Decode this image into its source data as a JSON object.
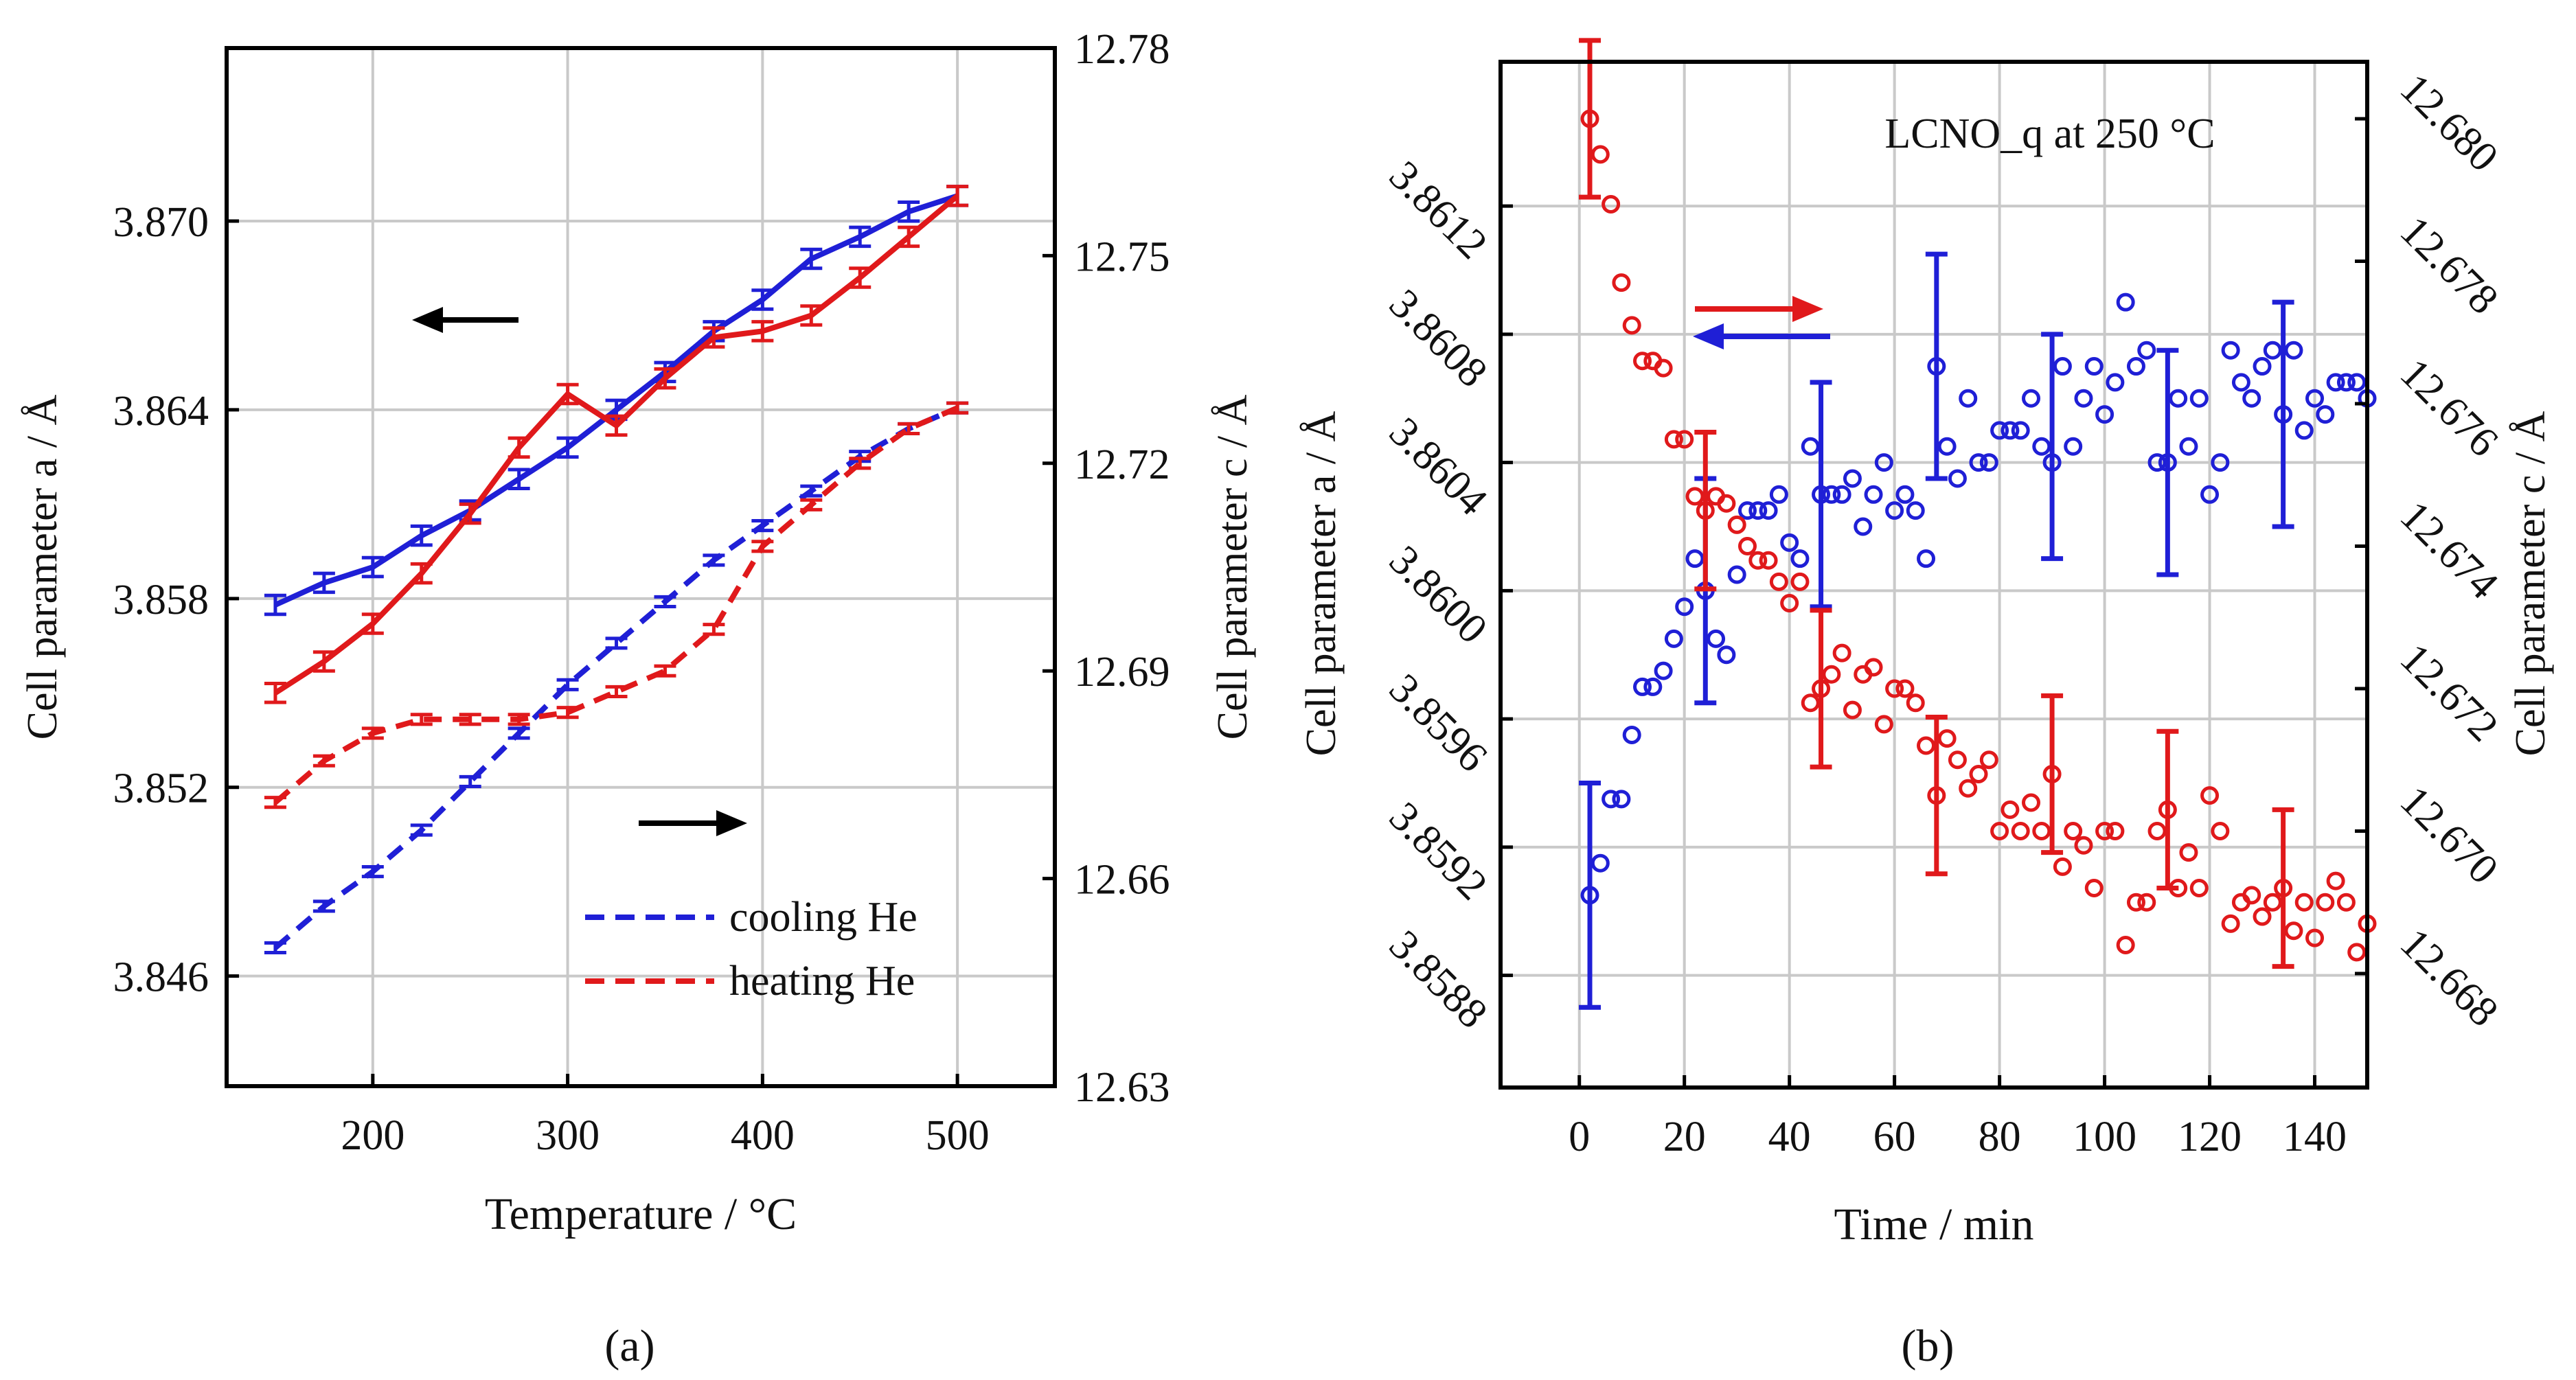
{
  "colors": {
    "cooling": "#1f1fd6",
    "heating": "#e0191b",
    "grid": "#c9c9c9"
  },
  "panel_labels": [
    "(a)",
    "(b)"
  ],
  "chart_data": [
    {
      "id": "a",
      "type": "line",
      "xlabel": "Temperature / °C",
      "ylabel_left": "Cell parameter a / Å",
      "ylabel_right": "Cell parameter c / Å",
      "xlim": [
        125,
        550
      ],
      "ylim_left": [
        3.8425,
        3.8755
      ],
      "ylim_right": [
        12.63,
        12.78
      ],
      "xticks": [
        200,
        300,
        400,
        500
      ],
      "yticks_left": [
        3.846,
        3.852,
        3.858,
        3.864,
        3.87
      ],
      "ytick_labels_left": [
        "3.846",
        "3.852",
        "3.858",
        "3.864",
        "3.870"
      ],
      "yticks_right": [
        12.63,
        12.66,
        12.69,
        12.72,
        12.75,
        12.78
      ],
      "ytick_labels_right": [
        "12.63",
        "12.66",
        "12.69",
        "12.72",
        "12.75",
        "12.78"
      ],
      "x": [
        150,
        175,
        200,
        225,
        250,
        275,
        300,
        325,
        350,
        375,
        400,
        425,
        450,
        475,
        500
      ],
      "series": [
        {
          "name": "cooling He",
          "param": "a",
          "axis": "left",
          "style": "solid",
          "color_key": "cooling",
          "values": [
            3.8578,
            3.8585,
            3.859,
            3.86,
            3.8608,
            3.8618,
            3.8628,
            3.864,
            3.8652,
            3.8665,
            3.8675,
            3.8688,
            3.8695,
            3.8703,
            3.8708
          ],
          "error": 0.0003
        },
        {
          "name": "heating He",
          "param": "a",
          "axis": "left",
          "style": "solid",
          "color_key": "heating",
          "values": [
            3.855,
            3.856,
            3.8572,
            3.8588,
            3.8607,
            3.8628,
            3.8645,
            3.8635,
            3.865,
            3.8663,
            3.8665,
            3.867,
            3.8682,
            3.8695,
            3.8708
          ],
          "error": 0.0003
        },
        {
          "name": "cooling He",
          "param": "c",
          "axis": "right",
          "style": "dashed",
          "color_key": "cooling",
          "values": [
            12.65,
            12.656,
            12.661,
            12.667,
            12.674,
            12.681,
            12.688,
            12.694,
            12.7,
            12.706,
            12.711,
            12.716,
            12.721,
            12.725,
            12.728
          ],
          "error": 0.0007
        },
        {
          "name": "heating He",
          "param": "c",
          "axis": "right",
          "style": "dashed",
          "color_key": "heating",
          "values": [
            12.671,
            12.677,
            12.681,
            12.683,
            12.683,
            12.683,
            12.684,
            12.687,
            12.69,
            12.696,
            12.708,
            12.714,
            12.72,
            12.725,
            12.728
          ],
          "error": 0.0007
        }
      ],
      "legend": {
        "position": "bottom-right",
        "entries": [
          "cooling He",
          "heating He"
        ]
      },
      "annotations": [
        {
          "kind": "arrow",
          "direction": "left",
          "at_x": 262,
          "at_y_left": 3.8645
        },
        {
          "kind": "arrow",
          "direction": "right",
          "at_x": 390,
          "at_y_left": 3.8497
        }
      ]
    },
    {
      "id": "b",
      "type": "scatter",
      "title": "LCNO_q at 250 °C",
      "xlabel": "Time / min",
      "ylabel_left": "Cell parameter a / Å",
      "ylabel_right": "Cell parameter c / Å",
      "xlim": [
        -15,
        150
      ],
      "ylim_left": [
        3.85845,
        3.86165
      ],
      "ylim_right": [
        12.6664,
        12.6808
      ],
      "xticks": [
        0,
        20,
        40,
        60,
        80,
        100,
        120,
        140
      ],
      "yticks_left": [
        3.8588,
        3.8592,
        3.8596,
        3.86,
        3.8604,
        3.8608,
        3.8612
      ],
      "ytick_labels_left": [
        "3.8588",
        "3.8592",
        "3.8596",
        "3.8600",
        "3.8604",
        "3.8608",
        "3.8612"
      ],
      "yticks_right": [
        12.668,
        12.67,
        12.672,
        12.674,
        12.676,
        12.678,
        12.68
      ],
      "ytick_labels_right": [
        "12.668",
        "12.670",
        "12.672",
        "12.674",
        "12.676",
        "12.678",
        "12.680"
      ],
      "series": [
        {
          "name": "a",
          "axis": "left",
          "color_key": "cooling",
          "x": [
            2,
            4,
            6,
            8,
            10,
            12,
            14,
            16,
            18,
            20,
            22,
            24,
            26,
            28,
            30,
            32,
            34,
            36,
            38,
            40,
            42,
            44,
            46,
            48,
            50,
            52,
            54,
            56,
            58,
            60,
            62,
            64,
            66,
            68,
            70,
            72,
            74,
            76,
            78,
            80,
            82,
            84,
            86,
            88,
            90,
            92,
            94,
            96,
            98,
            100,
            102,
            104,
            106,
            108,
            110,
            112,
            114,
            116,
            118,
            120,
            122,
            124,
            126,
            128,
            130,
            132,
            134,
            136,
            138,
            140,
            142,
            144,
            146,
            148,
            150
          ],
          "values": [
            3.85905,
            3.85915,
            3.85935,
            3.85935,
            3.85955,
            3.8597,
            3.8597,
            3.85975,
            3.85985,
            3.85995,
            3.8601,
            3.86,
            3.85985,
            3.8598,
            3.86005,
            3.86025,
            3.86025,
            3.86025,
            3.8603,
            3.86015,
            3.8601,
            3.86045,
            3.8603,
            3.8603,
            3.8603,
            3.86035,
            3.8602,
            3.8603,
            3.8604,
            3.86025,
            3.8603,
            3.86025,
            3.8601,
            3.8607,
            3.86045,
            3.86035,
            3.8606,
            3.8604,
            3.8604,
            3.8605,
            3.8605,
            3.8605,
            3.8606,
            3.86045,
            3.8604,
            3.8607,
            3.86045,
            3.8606,
            3.8607,
            3.86055,
            3.86065,
            3.8609,
            3.8607,
            3.86075,
            3.8604,
            3.8604,
            3.8606,
            3.86045,
            3.8606,
            3.8603,
            3.8604,
            3.86075,
            3.86065,
            3.8606,
            3.8607,
            3.86075,
            3.86055,
            3.86075,
            3.8605,
            3.8606,
            3.86055,
            3.86065,
            3.86065,
            3.86065,
            3.8606
          ],
          "errorbars": [
            {
              "x": 2,
              "y": 3.85905,
              "err": 0.00035
            },
            {
              "x": 24,
              "y": 3.86,
              "err": 0.00035
            },
            {
              "x": 46,
              "y": 3.8603,
              "err": 0.00035
            },
            {
              "x": 68,
              "y": 3.8607,
              "err": 0.00035
            },
            {
              "x": 90,
              "y": 3.86045,
              "err": 0.00035
            },
            {
              "x": 112,
              "y": 3.8604,
              "err": 0.00035
            },
            {
              "x": 134,
              "y": 3.86055,
              "err": 0.00035
            }
          ]
        },
        {
          "name": "c",
          "axis": "right",
          "color_key": "heating",
          "x": [
            2,
            4,
            6,
            8,
            10,
            12,
            14,
            16,
            18,
            20,
            22,
            24,
            26,
            28,
            30,
            32,
            34,
            36,
            38,
            40,
            42,
            44,
            46,
            48,
            50,
            52,
            54,
            56,
            58,
            60,
            62,
            64,
            66,
            68,
            70,
            72,
            74,
            76,
            78,
            80,
            82,
            84,
            86,
            88,
            90,
            92,
            94,
            96,
            98,
            100,
            102,
            104,
            106,
            108,
            110,
            112,
            114,
            116,
            118,
            120,
            122,
            124,
            126,
            128,
            130,
            132,
            134,
            136,
            138,
            140,
            142,
            144,
            146,
            148,
            150
          ],
          "values": [
            12.68,
            12.6795,
            12.6788,
            12.6777,
            12.6771,
            12.6766,
            12.6766,
            12.6765,
            12.6755,
            12.6755,
            12.6747,
            12.6745,
            12.6747,
            12.6746,
            12.6743,
            12.674,
            12.6738,
            12.6738,
            12.6735,
            12.6732,
            12.6735,
            12.6718,
            12.672,
            12.6722,
            12.6725,
            12.6717,
            12.6722,
            12.6723,
            12.6715,
            12.672,
            12.672,
            12.6718,
            12.6712,
            12.6705,
            12.6713,
            12.671,
            12.6706,
            12.6708,
            12.671,
            12.67,
            12.6703,
            12.67,
            12.6704,
            12.67,
            12.6708,
            12.6695,
            12.67,
            12.6698,
            12.6692,
            12.67,
            12.67,
            12.6684,
            12.669,
            12.669,
            12.67,
            12.6703,
            12.6692,
            12.6697,
            12.6692,
            12.6705,
            12.67,
            12.6687,
            12.669,
            12.6691,
            12.6688,
            12.669,
            12.6692,
            12.6686,
            12.669,
            12.6685,
            12.669,
            12.6693,
            12.669,
            12.6683,
            12.6687
          ],
          "errorbars": [
            {
              "x": 2,
              "y": 12.68,
              "err": 0.0011
            },
            {
              "x": 24,
              "y": 12.6745,
              "err": 0.0011
            },
            {
              "x": 46,
              "y": 12.672,
              "err": 0.0011
            },
            {
              "x": 68,
              "y": 12.6705,
              "err": 0.0011
            },
            {
              "x": 90,
              "y": 12.6708,
              "err": 0.0011
            },
            {
              "x": 112,
              "y": 12.6703,
              "err": 0.0011
            },
            {
              "x": 134,
              "y": 12.6692,
              "err": 0.0011
            }
          ]
        }
      ],
      "annotations": [
        {
          "kind": "arrow",
          "direction": "right",
          "color_key": "heating"
        },
        {
          "kind": "arrow",
          "direction": "left",
          "color_key": "cooling"
        }
      ]
    }
  ]
}
